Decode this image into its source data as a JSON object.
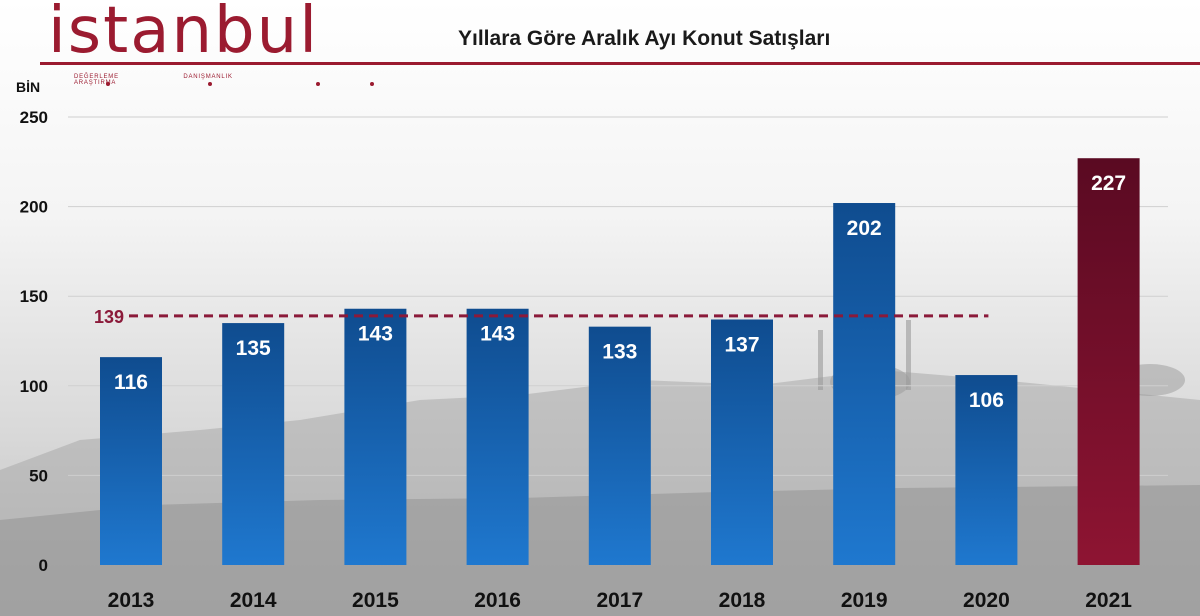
{
  "brand": {
    "logo_text": "istanbul",
    "tagline": [
      "DEĞERLEME",
      "DANIŞMANLIK",
      "ARAŞTIRMA"
    ],
    "color": "#9b1b30"
  },
  "chart_data": {
    "type": "bar",
    "title": "Yıllara Göre Aralık Ayı Konut Satışları",
    "ylabel": "BİN",
    "xlabel": "",
    "categories": [
      "2013",
      "2014",
      "2015",
      "2016",
      "2017",
      "2018",
      "2019",
      "2020",
      "2021"
    ],
    "values": [
      116,
      135,
      143,
      143,
      133,
      137,
      202,
      106,
      227
    ],
    "data_labels": [
      "116",
      "135",
      "143",
      "143",
      "133",
      "137",
      "202",
      "106",
      "227"
    ],
    "ylim": [
      0,
      250
    ],
    "yticks": [
      0,
      50,
      100,
      150,
      200,
      250
    ],
    "grid": true,
    "legend": "none",
    "average_line": {
      "value": 139,
      "label": "139",
      "color": "#8b1a3a",
      "from": "2013",
      "to": "2020"
    },
    "colors": {
      "bar": "#1a68b8",
      "highlight_bar": "#7a1030",
      "highlight_category": "2021"
    }
  }
}
